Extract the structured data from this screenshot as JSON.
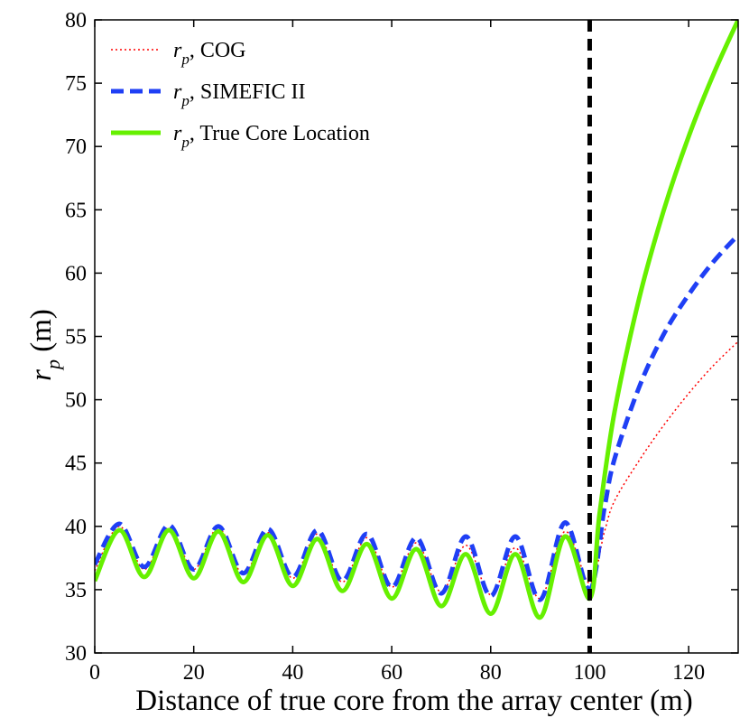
{
  "chart_data": {
    "type": "line",
    "xlabel": "Distance of true core from the array center (m)",
    "ylabel_main": "r",
    "ylabel_sub": "p",
    "ylabel_unit": " (m)",
    "xlim": [
      0,
      130
    ],
    "ylim": [
      30,
      80
    ],
    "x_ticks": [
      0,
      20,
      40,
      60,
      80,
      100,
      120
    ],
    "y_ticks": [
      30,
      35,
      40,
      45,
      50,
      55,
      60,
      65,
      70,
      75,
      80
    ],
    "legend_position": "top-left",
    "vertical_marker": {
      "x": 100,
      "color": "#000000",
      "style": "dashed"
    },
    "series": [
      {
        "name": "COG",
        "legend_main": "r",
        "legend_sub": "p",
        "legend_rest": ", COG",
        "color": "#ff0000",
        "style": "dotted",
        "x": [
          0,
          5,
          10,
          15,
          20,
          25,
          30,
          35,
          40,
          45,
          50,
          55,
          60,
          65,
          70,
          75,
          80,
          85,
          90,
          95,
          100,
          103,
          105,
          110,
          115,
          120,
          125,
          130
        ],
        "y": [
          36.5,
          40.0,
          36.6,
          39.9,
          36.6,
          39.9,
          36.2,
          39.5,
          35.9,
          39.4,
          35.6,
          39.1,
          35.2,
          38.7,
          34.8,
          38.5,
          34.6,
          38.3,
          34.3,
          39.6,
          35.5,
          39.6,
          42.0,
          45.2,
          48.0,
          50.5,
          52.7,
          54.6
        ]
      },
      {
        "name": "SIMEFIC II",
        "legend_main": "r",
        "legend_sub": "p",
        "legend_rest": ", SIMEFIC II",
        "color": "#1f3ff5",
        "style": "dashed",
        "x": [
          0,
          5,
          10,
          15,
          20,
          25,
          30,
          35,
          40,
          45,
          50,
          55,
          60,
          65,
          70,
          75,
          80,
          85,
          90,
          95,
          100,
          103,
          105,
          110,
          115,
          120,
          125,
          130
        ],
        "y": [
          37.0,
          40.2,
          36.8,
          40.1,
          36.6,
          40.0,
          36.3,
          39.8,
          36.0,
          39.7,
          35.7,
          39.4,
          35.2,
          39.1,
          34.7,
          39.2,
          34.5,
          39.2,
          34.2,
          40.3,
          35.0,
          41.5,
          45.3,
          51.0,
          55.2,
          58.3,
          60.9,
          63.0
        ]
      },
      {
        "name": "True Core Location",
        "legend_main": "r",
        "legend_sub": "p",
        "legend_rest": ", True Core Location",
        "color": "#66f000",
        "style": "solid",
        "x": [
          0,
          5,
          10,
          15,
          20,
          25,
          30,
          35,
          40,
          45,
          50,
          55,
          60,
          65,
          70,
          75,
          80,
          85,
          90,
          95,
          100,
          102,
          105,
          110,
          115,
          120,
          125,
          130
        ],
        "y": [
          35.7,
          39.7,
          36.0,
          39.7,
          35.9,
          39.6,
          35.6,
          39.3,
          35.3,
          39.0,
          34.9,
          38.6,
          34.3,
          38.2,
          33.7,
          37.8,
          33.1,
          37.8,
          32.8,
          39.2,
          34.3,
          41.0,
          49.0,
          58.0,
          65.0,
          70.8,
          75.7,
          80.0
        ]
      }
    ]
  }
}
